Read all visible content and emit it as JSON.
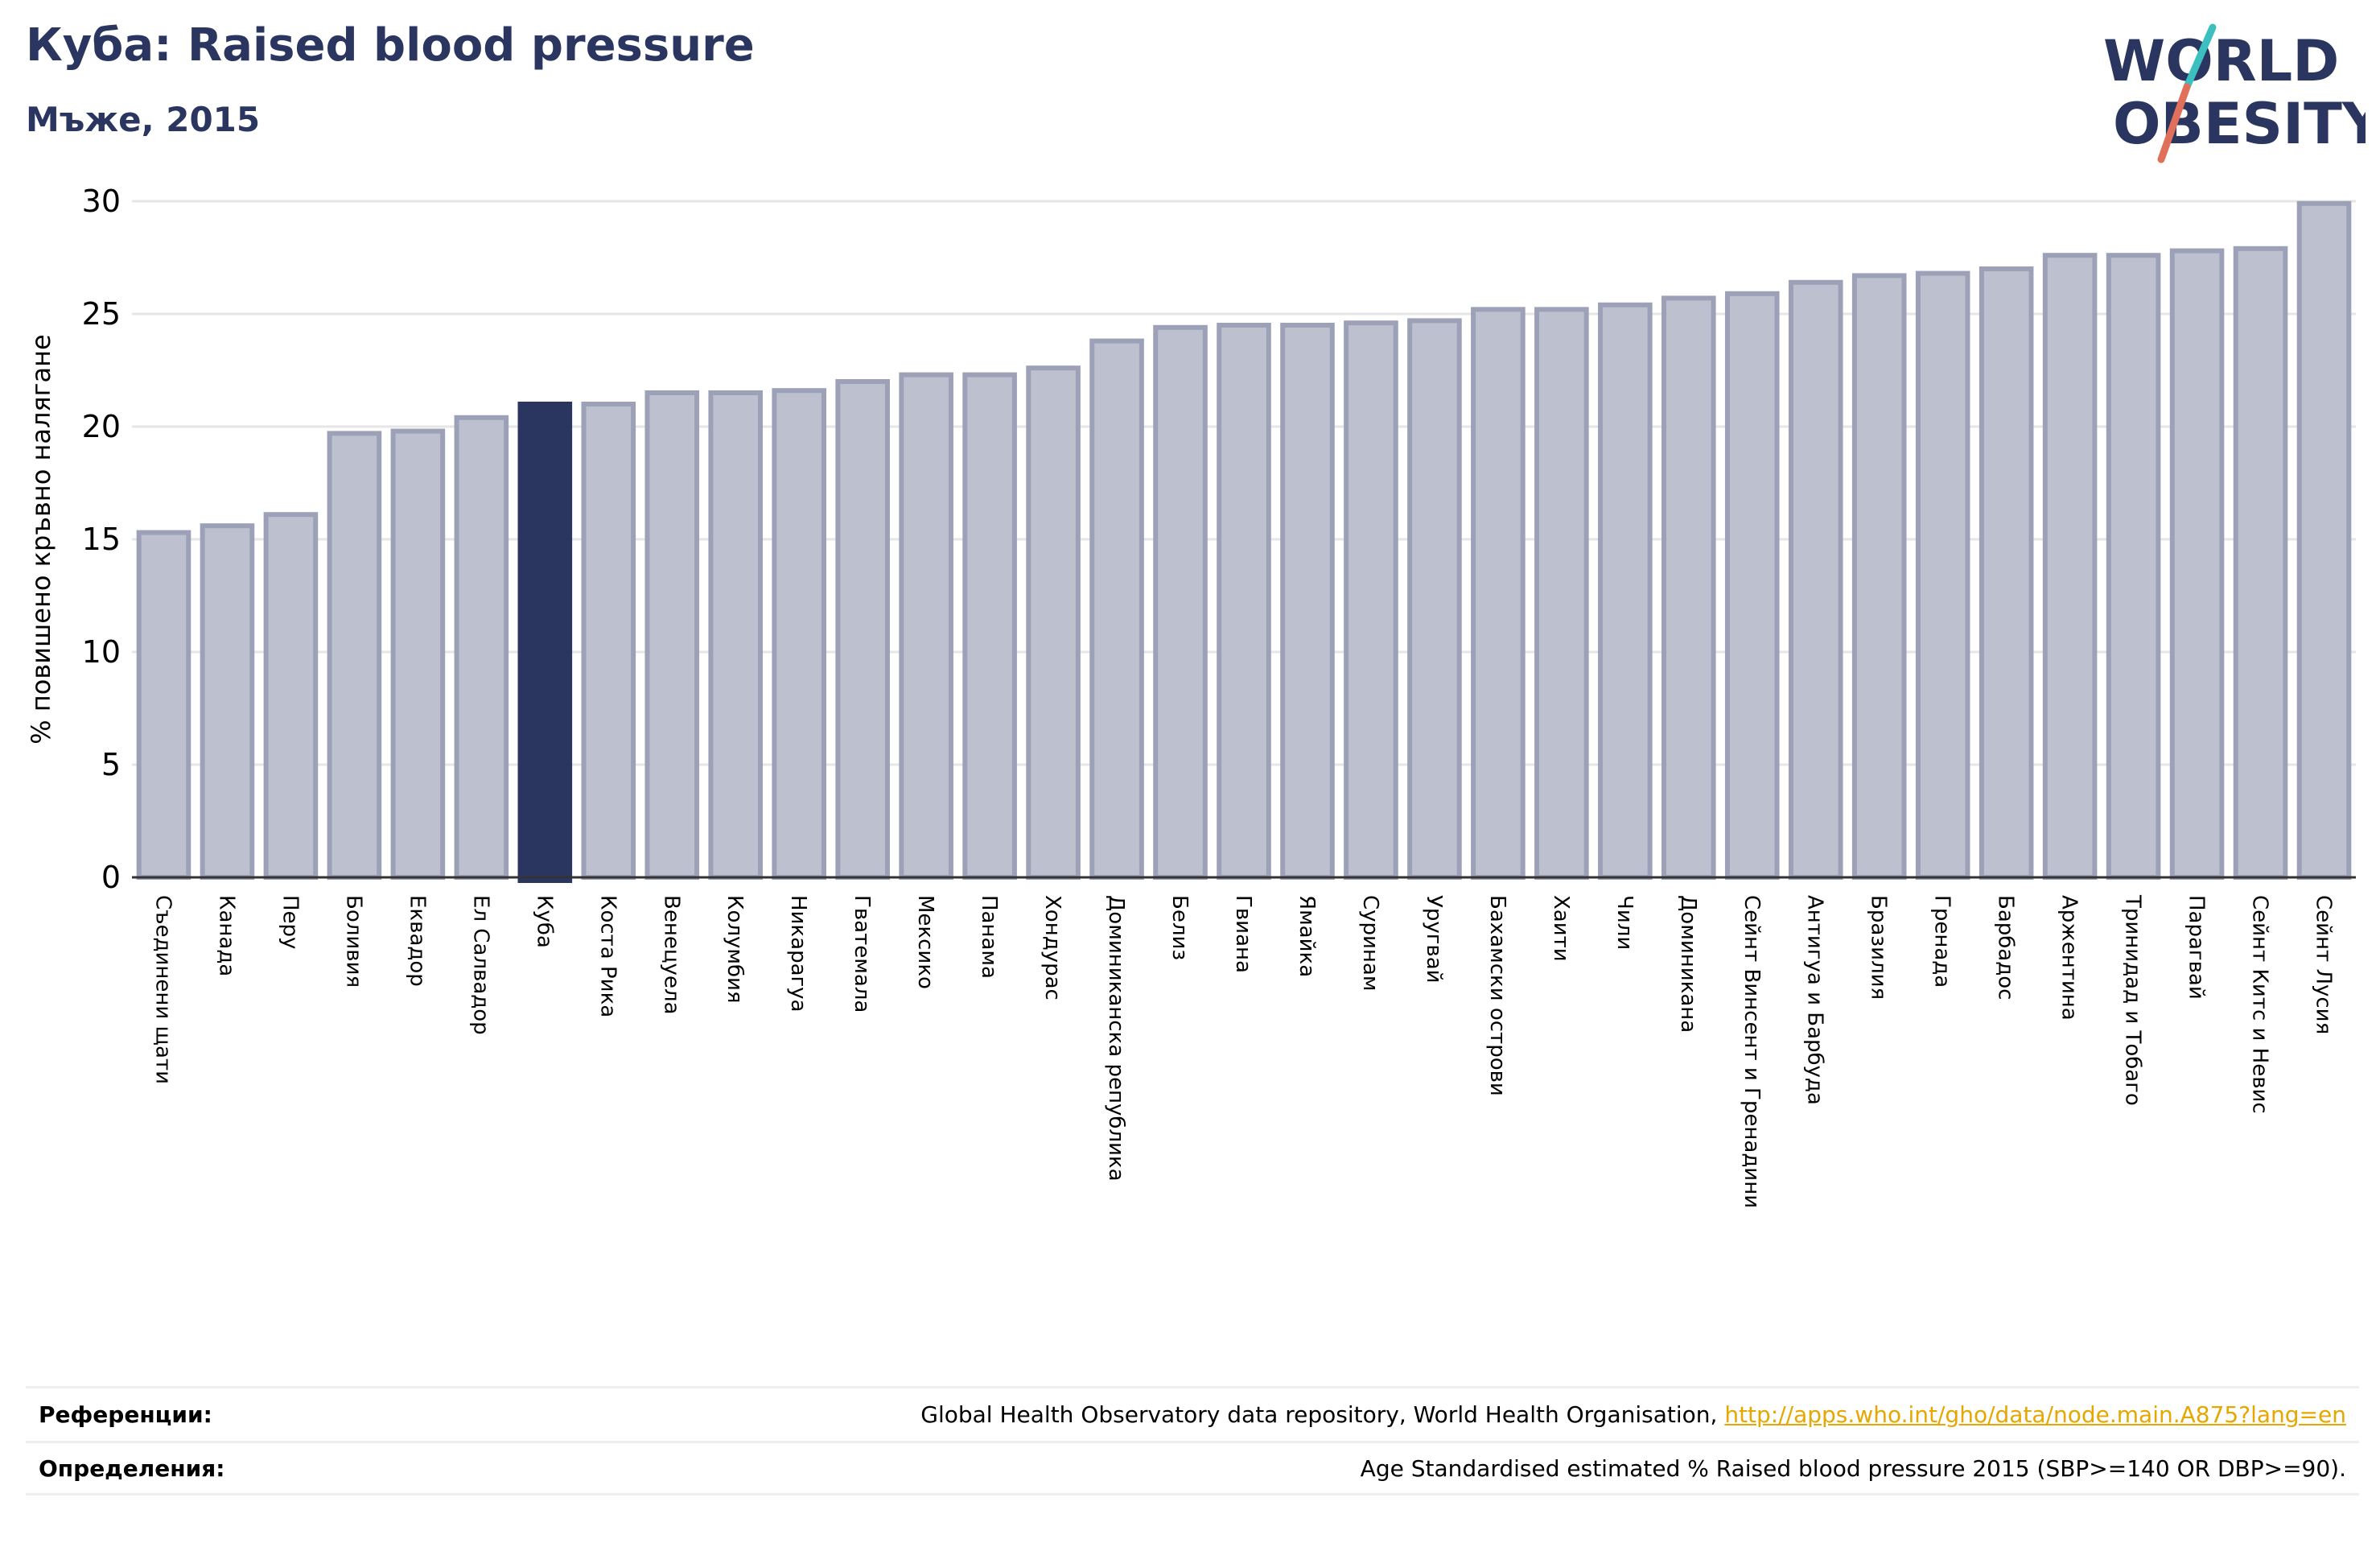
{
  "header": {
    "title": "Куба: Raised blood pressure",
    "subtitle": "Мъже, 2015"
  },
  "logo": {
    "line1": "WORLD",
    "line2": "OBESITY",
    "colors": {
      "text": "#2a3560",
      "slash_teal": "#3bbfbf",
      "slash_coral": "#e0705a"
    }
  },
  "colors": {
    "bar": "#bdc0ce",
    "bar_stroke": "#9ca1b8",
    "highlight": "#2a3560",
    "grid": "#e6e6e6",
    "axis": "#333333"
  },
  "chart_data": {
    "type": "bar",
    "title": "",
    "ylabel": "% повишено кръвно налягане",
    "xlabel": "",
    "ylim": [
      0,
      30
    ],
    "yticks": [
      0,
      5,
      10,
      15,
      20,
      25,
      30
    ],
    "grid": true,
    "highlight_category": "Куба",
    "categories": [
      "Съединени щати",
      "Канада",
      "Перу",
      "Боливия",
      "Еквадор",
      "Ел Салвадор",
      "Куба",
      "Коста Рика",
      "Венецуела",
      "Колумбия",
      "Никарагуа",
      "Гватемала",
      "Мексико",
      "Панама",
      "Хондурас",
      "Доминиканска република",
      "Белиз",
      "Гвиана",
      "Ямайка",
      "Суринам",
      "Уругвай",
      "Бахамски острови",
      "Хаити",
      "Чили",
      "Доминикана",
      "Сейнт Винсент и Гренадини",
      "Антигуа и Барбуда",
      "Бразилия",
      "Гренада",
      "Барбадос",
      "Аржентина",
      "Тринидад и Тобаго",
      "Парагвай",
      "Сейнт Китс и Невис",
      "Сейнт Лусия"
    ],
    "values": [
      15.3,
      15.6,
      16.1,
      19.7,
      19.8,
      20.4,
      21.0,
      21.0,
      21.5,
      21.5,
      21.6,
      22.0,
      22.3,
      22.3,
      22.6,
      23.8,
      24.4,
      24.5,
      24.5,
      24.6,
      24.7,
      25.2,
      25.2,
      25.4,
      25.7,
      25.9,
      26.4,
      26.7,
      26.8,
      27.0,
      27.6,
      27.6,
      27.8,
      27.9,
      29.9
    ]
  },
  "footer": {
    "references_label": "Референции:",
    "references_text": "Global Health Observatory data repository, World Health Organisation,",
    "references_link": "http://apps.who.int/gho/data/node.main.A875?lang=en",
    "definitions_label": "Определения:",
    "definitions_text": "Age Standardised estimated % Raised blood pressure 2015 (SBP>=140 OR DBP>=90)."
  }
}
